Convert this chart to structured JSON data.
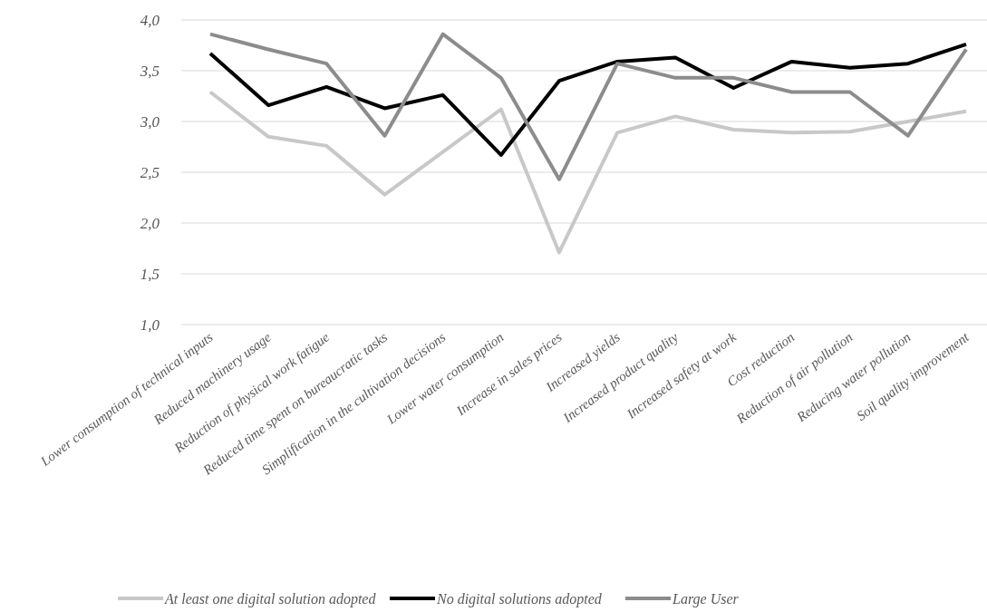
{
  "chart_data": {
    "type": "line",
    "categories": [
      "Lower consumption of technical inputs",
      "Reduced machinery usage",
      "Reduction of physical work fatigue",
      "Reduced time spent on bureaucratic tasks",
      "Simplification in the cultivation decisions",
      "Lower water consumption",
      "Increase in sales prices",
      "Increased yields",
      "Increased product quality",
      "Increased safety at work",
      "Cost reduction",
      "Reduction of air pollution",
      "Reducing water pollution",
      "Soil quality improvement"
    ],
    "series": [
      {
        "name": "At least one digital solution adopted",
        "color": "#c8c8c8",
        "values": [
          3.29,
          2.85,
          2.76,
          2.28,
          2.7,
          3.12,
          1.71,
          2.89,
          3.05,
          2.92,
          2.89,
          2.9,
          3.0,
          3.1
        ]
      },
      {
        "name": "No digital solutions adopted",
        "color": "#000000",
        "values": [
          3.67,
          3.16,
          3.34,
          3.13,
          3.26,
          2.67,
          3.4,
          3.59,
          3.63,
          3.33,
          3.59,
          3.53,
          3.57,
          3.76
        ]
      },
      {
        "name": "Large User",
        "color": "#8c8c8c",
        "values": [
          3.86,
          3.71,
          3.57,
          2.86,
          3.86,
          3.43,
          2.43,
          3.57,
          3.43,
          3.43,
          3.29,
          3.29,
          2.86,
          3.71
        ]
      }
    ],
    "ylim": [
      1,
      4
    ],
    "yticks": [
      {
        "value": 1,
        "label": "1,0"
      },
      {
        "value": 1.5,
        "label": "1,5"
      },
      {
        "value": 2,
        "label": "2,0"
      },
      {
        "value": 2.5,
        "label": "2,5"
      },
      {
        "value": 3,
        "label": "3,0"
      },
      {
        "value": 3.5,
        "label": "3,5"
      },
      {
        "value": 4,
        "label": "4,0"
      }
    ],
    "grid": "y",
    "legend": "bottom",
    "marker": "none",
    "line_style": "solid"
  }
}
